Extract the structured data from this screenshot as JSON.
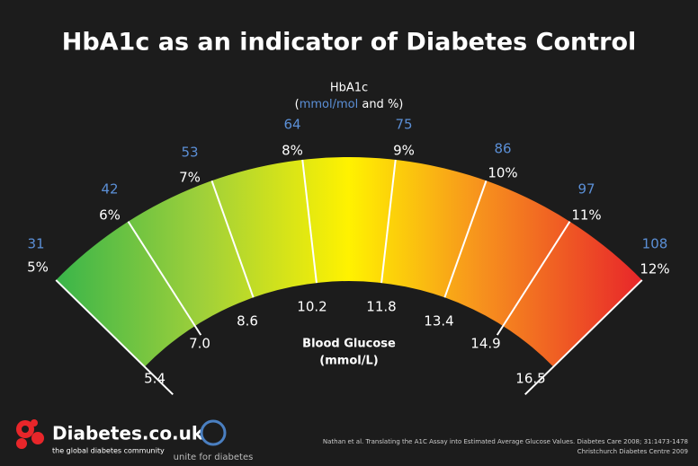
{
  "header": {
    "title": "HbA1c as an indicator of Diabetes Control"
  },
  "hba1c": {
    "label": "HbA1c",
    "units": [
      "(",
      "mmol/mol",
      " and %)"
    ]
  },
  "glucose": {
    "label": "Blood Glucose",
    "units": "(mmol/L)"
  },
  "ticks": [
    {
      "mmol": "31",
      "percent": "5%",
      "glucose": "5.4"
    },
    {
      "mmol": "42",
      "percent": "6%",
      "glucose": "7.0"
    },
    {
      "mmol": "53",
      "percent": "7%",
      "glucose": "8.6"
    },
    {
      "mmol": "64",
      "percent": "8%",
      "glucose": "10.2"
    },
    {
      "mmol": "75",
      "percent": "9%",
      "glucose": "11.8"
    },
    {
      "mmol": "86",
      "percent": "10%",
      "glucose": "13.4"
    },
    {
      "mmol": "97",
      "percent": "11%",
      "glucose": "14.9"
    },
    {
      "mmol": "108",
      "percent": "12%",
      "glucose": "16.5"
    }
  ],
  "footer": {
    "brand": "Diabetes.co.uk",
    "tagline": "the global diabetes community",
    "partner": "unite for diabetes",
    "citation": [
      "Nathan et al. Translating the A1C Assay into Estimated Average Glucose Values. Diabetes Care 2008; 31:1473-1478",
      "Christchurch Diabetes Centre 2009"
    ]
  }
}
